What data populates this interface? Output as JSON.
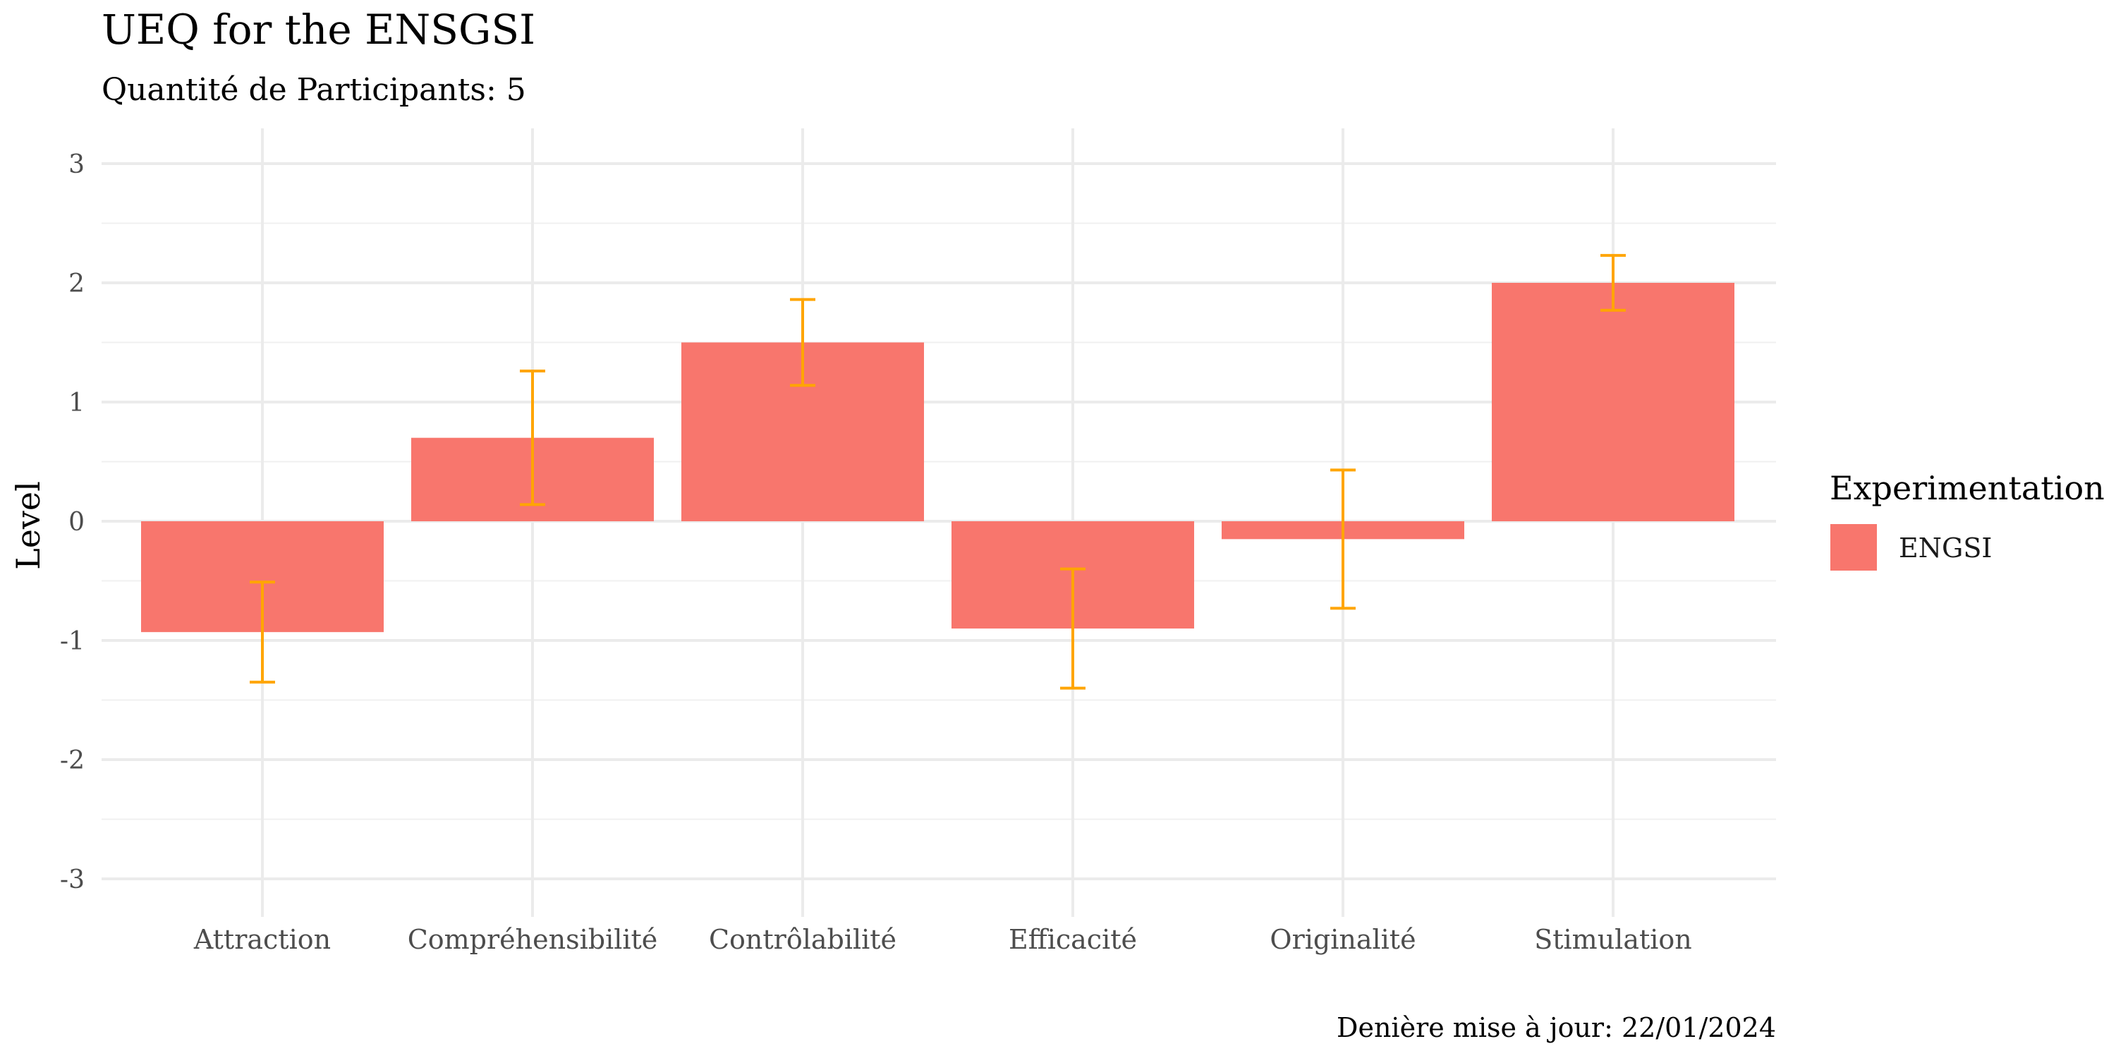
{
  "chart_data": {
    "type": "bar",
    "title": "UEQ for the ENSGSI",
    "subtitle": "Quantité de Participants: 5",
    "xlabel": "",
    "ylabel": "Level",
    "ylim": [
      -3.3,
      3.3
    ],
    "yticks": [
      "3",
      "2",
      "1",
      "0",
      "-1",
      "-2",
      "-3"
    ],
    "ytick_values": [
      3,
      2,
      1,
      0,
      -1,
      -2,
      -3
    ],
    "grid": true,
    "categories": [
      "Attraction",
      "Compréhensibilité",
      "Contrôlabilité",
      "Efficacité",
      "Originalité",
      "Stimulation"
    ],
    "series": [
      {
        "name": "ENGSI",
        "color": "#F8766D",
        "values": [
          -0.93,
          0.7,
          1.5,
          -0.9,
          -0.15,
          2.0
        ],
        "error_low": [
          -1.35,
          0.14,
          1.14,
          -1.4,
          -0.73,
          1.77
        ],
        "error_high": [
          -0.51,
          1.26,
          1.86,
          -0.4,
          0.43,
          2.23
        ]
      }
    ],
    "errorbar_color": "#FFA500",
    "legend": {
      "title": "Experimentation",
      "placement": "right",
      "entries": [
        "ENGSI"
      ]
    },
    "caption": "Denière mise à jour:  22/01/2024"
  }
}
